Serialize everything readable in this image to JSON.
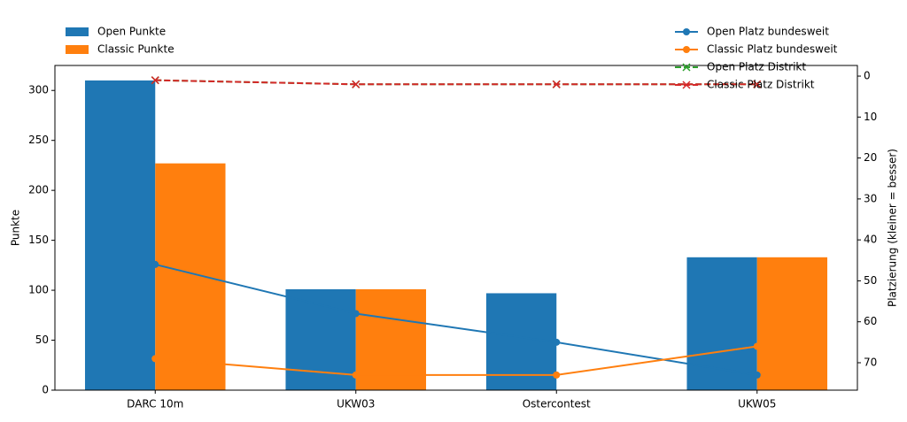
{
  "chart_data": {
    "type": "bar",
    "categories": [
      "DARC 10m",
      "UKW03",
      "Ostercontest",
      "UKW05"
    ],
    "y_label": "Punkte",
    "y2_label": "Platzierung (kleiner = besser)",
    "ylim": [
      0,
      325
    ],
    "yticks": [
      0,
      50,
      100,
      150,
      200,
      250,
      300
    ],
    "y2lim": [
      76.7,
      -2.6
    ],
    "y2ticks": [
      0,
      10,
      20,
      30,
      40,
      50,
      60,
      70
    ],
    "legend": "upper left",
    "legend2": "upper right",
    "series": [
      {
        "name": "Open Punkte",
        "type": "bar",
        "color": "#1f77b4",
        "values": [
          310,
          101,
          97,
          133
        ]
      },
      {
        "name": "Classic Punkte",
        "type": "bar",
        "color": "#ff7f0e",
        "values": [
          227,
          101,
          null,
          133
        ]
      },
      {
        "name": "Open Platz bundesweit",
        "type": "line",
        "axis": "y2",
        "color": "#1f77b4",
        "marker": "o",
        "linestyle": "solid",
        "values": [
          46,
          58,
          65,
          73
        ]
      },
      {
        "name": "Classic Platz bundesweit",
        "type": "line",
        "axis": "y2",
        "color": "#ff7f0e",
        "marker": "o",
        "linestyle": "solid",
        "values": [
          69,
          73,
          73,
          66
        ]
      },
      {
        "name": "Open Platz Distrikt",
        "type": "line",
        "axis": "y2",
        "color": "#2ca02c",
        "marker": "x",
        "linestyle": "dashed",
        "values": [
          1,
          2,
          2,
          2
        ]
      },
      {
        "name": "Classic Platz Distrikt",
        "type": "line",
        "axis": "y2",
        "color": "#d62728",
        "marker": "x",
        "linestyle": "dashed",
        "values": [
          1,
          2,
          2,
          2
        ]
      }
    ]
  }
}
